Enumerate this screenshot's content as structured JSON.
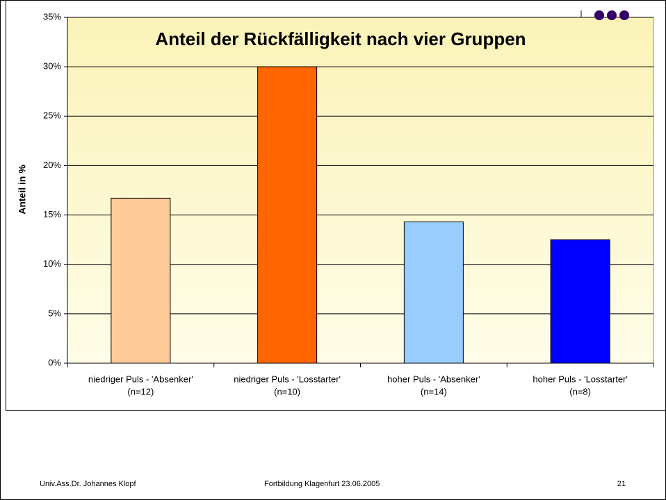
{
  "chart_data": {
    "type": "bar",
    "title": "Anteil der Rückfälligkeit nach vier Gruppen",
    "y_label": "Anteil in %",
    "categories": [
      [
        "niedriger Puls - 'Absenker'",
        "(n=12)"
      ],
      [
        "niedriger Puls - 'Losstarter'",
        "(n=10)"
      ],
      [
        "hoher Puls - 'Absenker'",
        "(n=14)"
      ],
      [
        "hoher Puls - 'Losstarter'",
        "(n=8)"
      ]
    ],
    "values": [
      16.7,
      30,
      14.3,
      12.5
    ],
    "colors": [
      "#ffcc99",
      "#ff6600",
      "#99ccff",
      "#0000ff"
    ],
    "ylim": [
      0,
      35
    ],
    "yticks": [
      {
        "value": 0,
        "label": "0%"
      },
      {
        "value": 5,
        "label": "5%"
      },
      {
        "value": 10,
        "label": "10%"
      },
      {
        "value": 15,
        "label": "15%"
      },
      {
        "value": 20,
        "label": "20%"
      },
      {
        "value": 25,
        "label": "25%"
      },
      {
        "value": 30,
        "label": "30%"
      },
      {
        "value": 35,
        "label": "35%"
      }
    ],
    "grid": true
  },
  "footer": {
    "author": "Univ.Ass.Dr. Johannes Klopf",
    "event": "Fortbildung Klagenfurt 23.06.2005",
    "page": "21"
  }
}
